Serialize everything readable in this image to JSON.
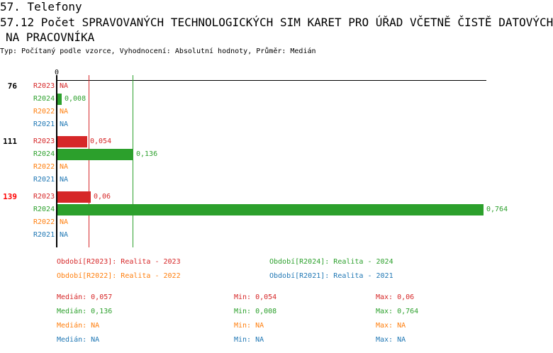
{
  "header": {
    "section": "57. Telefony",
    "title_line1": "57.12 Počet SPRAVOVANÝCH TECHNOLOGICKÝCH SIM KARET PRO ÚŘAD VČETNĚ ČISTĚ DATOVÝCH",
    "title_line2": "NA PRACOVNÍKA",
    "subtitle": "Typ: Počítaný podle vzorce, Vyhodnocení: Absolutní hodnoty, Průměr: Medián"
  },
  "colors": {
    "R2023": "#d62728",
    "R2024": "#2ca02c",
    "R2022": "#ff7f0e",
    "R2021": "#1f77b4"
  },
  "chart_data": {
    "type": "bar",
    "orientation": "horizontal",
    "axis_zero_label": "0",
    "xlim": [
      0,
      0.764
    ],
    "groups": [
      {
        "label": "76",
        "label_color": "#000000",
        "values": {
          "R2023": null,
          "R2024": 0.008,
          "R2022": null,
          "R2021": null
        },
        "texts": {
          "R2023": "NA",
          "R2024": "0,008",
          "R2022": "NA",
          "R2021": "NA"
        }
      },
      {
        "label": "111",
        "label_color": "#000000",
        "values": {
          "R2023": 0.054,
          "R2024": 0.136,
          "R2022": null,
          "R2021": null
        },
        "texts": {
          "R2023": "0,054",
          "R2024": "0,136",
          "R2022": "NA",
          "R2021": "NA"
        }
      },
      {
        "label": "139",
        "label_color": "#ff0000",
        "values": {
          "R2023": 0.06,
          "R2024": 0.764,
          "R2022": null,
          "R2021": null
        },
        "texts": {
          "R2023": "0,06",
          "R2024": "0,764",
          "R2022": "NA",
          "R2021": "NA"
        }
      }
    ],
    "series_order": [
      "R2023",
      "R2024",
      "R2022",
      "R2021"
    ],
    "median_lines": {
      "R2023": 0.057,
      "R2024": 0.136
    }
  },
  "legend": [
    {
      "key": "R2023",
      "text": "Období[R2023]: Realita - 2023"
    },
    {
      "key": "R2024",
      "text": "Období[R2024]: Realita - 2024"
    },
    {
      "key": "R2022",
      "text": "Období[R2022]: Realita - 2022"
    },
    {
      "key": "R2021",
      "text": "Období[R2021]: Realita - 2021"
    }
  ],
  "stats": [
    {
      "key": "R2023",
      "median": "Medián: 0,057",
      "min": "Min: 0,054",
      "max": "Max: 0,06"
    },
    {
      "key": "R2024",
      "median": "Medián: 0,136",
      "min": "Min: 0,008",
      "max": "Max: 0,764"
    },
    {
      "key": "R2022",
      "median": "Medián: NA",
      "min": "Min: NA",
      "max": "Max: NA"
    },
    {
      "key": "R2021",
      "median": "Medián: NA",
      "min": "Min: NA",
      "max": "Max: NA"
    }
  ]
}
